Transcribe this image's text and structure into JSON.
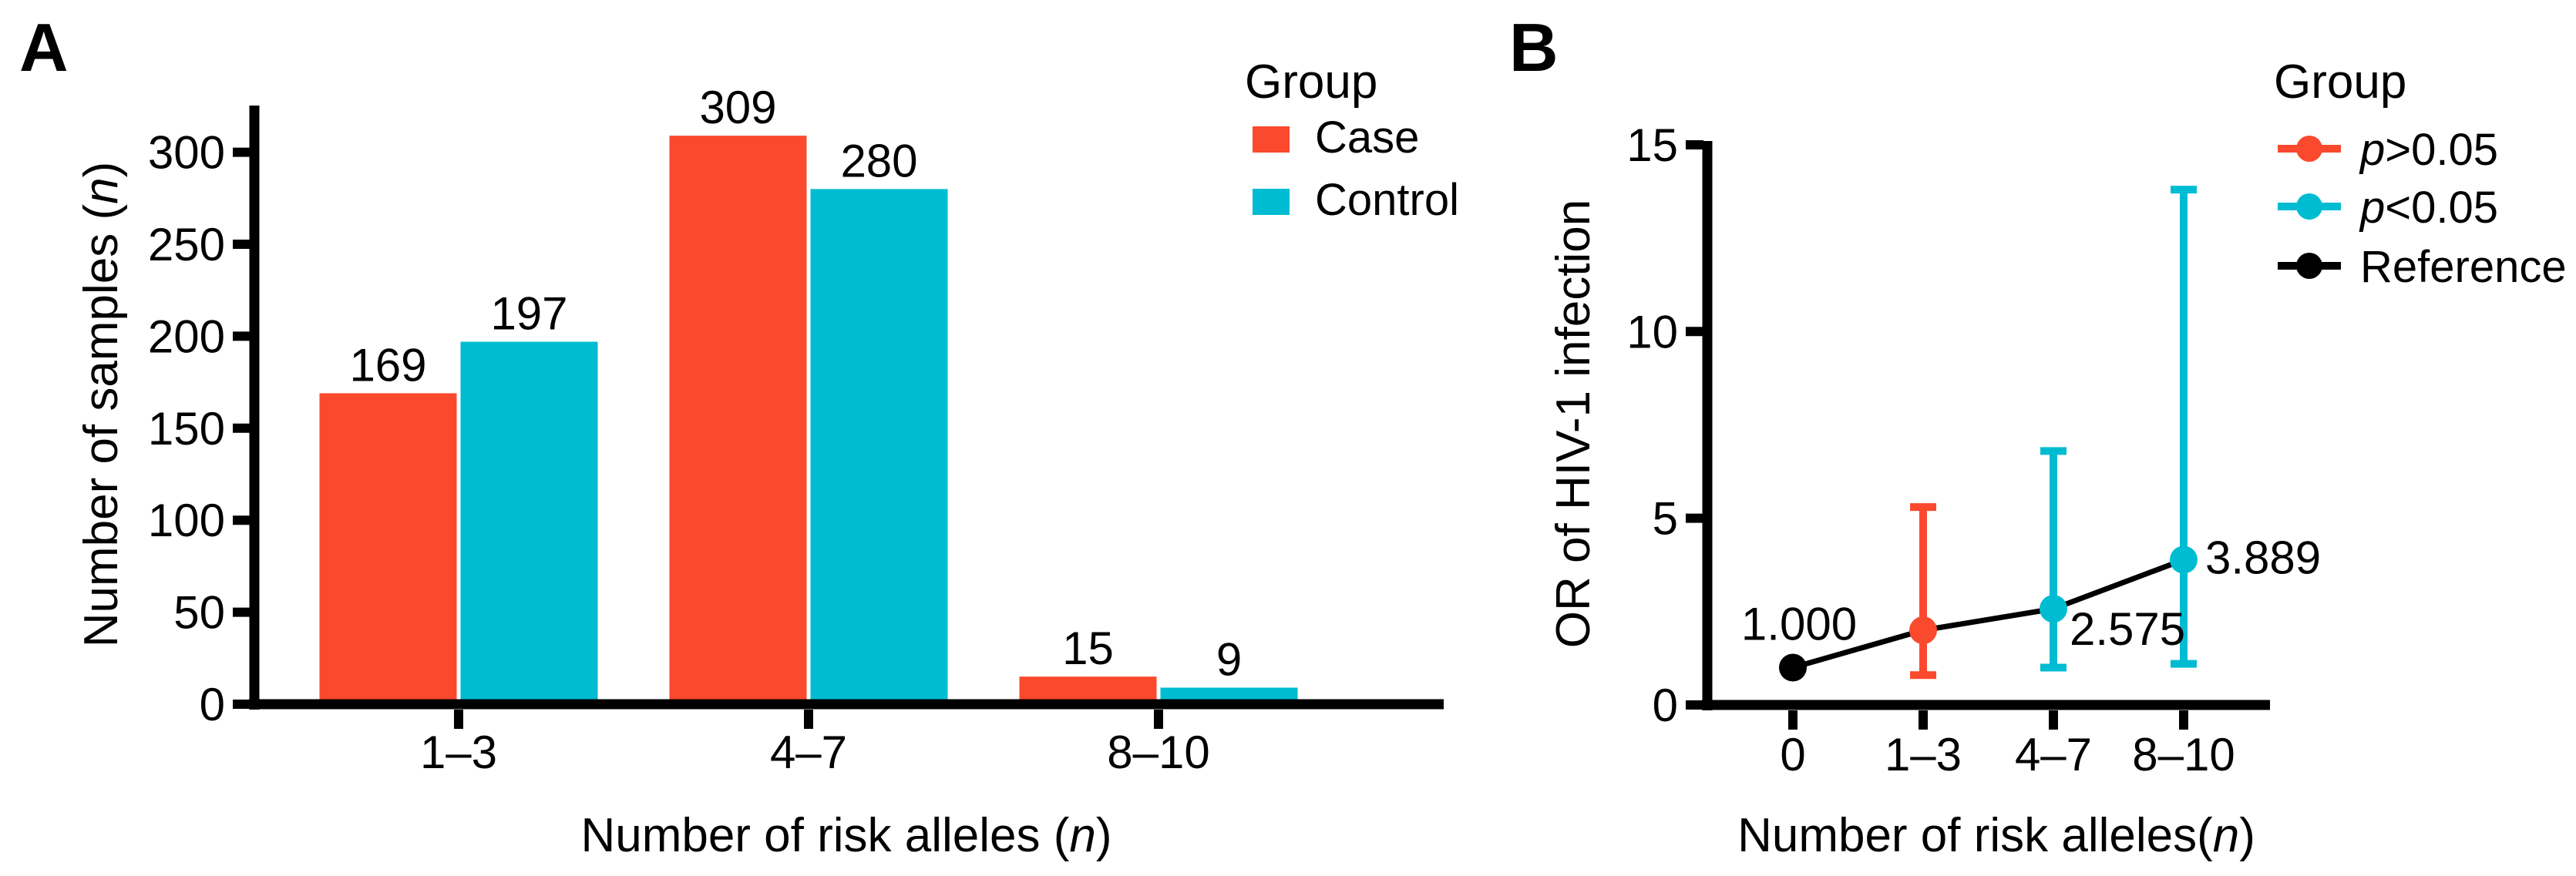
{
  "figure": {
    "panel_a_label": "A",
    "panel_b_label": "B",
    "background": "#ffffff"
  },
  "colors": {
    "case": "#FB492E",
    "control": "#00BCD2",
    "reference": "#000000",
    "axis": "#000000",
    "text": "#000000"
  },
  "chart_data": [
    {
      "type": "bar",
      "panel": "A",
      "title": "",
      "categories": [
        "1–3",
        "4–7",
        "8–10"
      ],
      "series": [
        {
          "name": "Case",
          "color_key": "case",
          "values": [
            169,
            309,
            15
          ]
        },
        {
          "name": "Control",
          "color_key": "control",
          "values": [
            197,
            280,
            9
          ]
        }
      ],
      "bar_value_labels": [
        [
          "169",
          "309",
          "15"
        ],
        [
          "197",
          "280",
          "9"
        ]
      ],
      "xlabel": "Number of risk alleles (n)",
      "xlabel_parts": [
        "Number of risk alleles (",
        "n",
        ")"
      ],
      "ylabel": "Number of samples (n)",
      "ylabel_parts": [
        "Number of samples (",
        "n",
        ")"
      ],
      "ylim": [
        0,
        300
      ],
      "yticks": [
        "0",
        "50",
        "100",
        "150",
        "200",
        "250",
        "300"
      ],
      "grid": false,
      "legend": {
        "title": "Group",
        "position": "top-right-outside",
        "items": [
          {
            "label": "Case",
            "color_key": "case"
          },
          {
            "label": "Control",
            "color_key": "control"
          }
        ]
      }
    },
    {
      "type": "scatter",
      "panel": "B",
      "title": "",
      "categories": [
        "0",
        "1–3",
        "4–7",
        "8–10"
      ],
      "points": [
        {
          "category": "0",
          "or": 1.0,
          "label": "1.000",
          "group": "Reference",
          "color_key": "reference",
          "ci_low": null,
          "ci_high": null
        },
        {
          "category": "1–3",
          "or": 2.0,
          "label": "",
          "group": "p>0.05",
          "color_key": "case",
          "ci_low": 0.8,
          "ci_high": 5.3
        },
        {
          "category": "4–7",
          "or": 2.575,
          "label": "2.575",
          "group": "p<0.05",
          "color_key": "control",
          "ci_low": 1.0,
          "ci_high": 6.8
        },
        {
          "category": "8–10",
          "or": 3.889,
          "label": "3.889",
          "group": "p<0.05",
          "color_key": "control",
          "ci_low": 1.1,
          "ci_high": 13.8
        }
      ],
      "connecting_line": true,
      "xlabel": "Number of risk alleles(n)",
      "xlabel_parts": [
        "Number of risk alleles(",
        "n",
        ")"
      ],
      "ylabel": "OR of HIV-1 infection",
      "ylim": [
        0,
        15
      ],
      "yticks": [
        "0",
        "5",
        "10",
        "15"
      ],
      "grid": false,
      "legend": {
        "title": "Group",
        "position": "top-right-outside",
        "items": [
          {
            "label": "p>0.05",
            "label_italic": "p",
            "label_rest": ">0.05",
            "color_key": "case"
          },
          {
            "label": "p<0.05",
            "label_italic": "p",
            "label_rest": "<0.05",
            "color_key": "control"
          },
          {
            "label": "Reference",
            "label_italic": "",
            "label_rest": "Reference",
            "color_key": "reference"
          }
        ]
      }
    }
  ]
}
